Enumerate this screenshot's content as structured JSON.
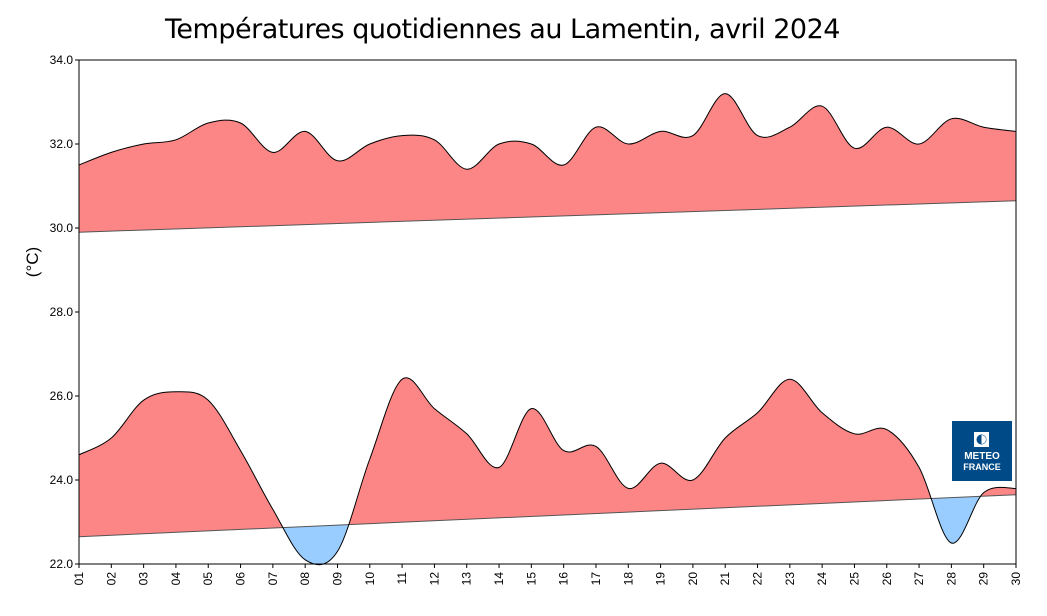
{
  "chart_data": {
    "type": "area",
    "title": "Températures quotidiennes au Lamentin, avril 2024",
    "ylabel": "(°C)",
    "xlabel": "",
    "ylim": [
      22.0,
      34.0
    ],
    "yticks": [
      "22.0",
      "24.0",
      "26.0",
      "28.0",
      "30.0",
      "32.0",
      "34.0"
    ],
    "x": [
      "01",
      "02",
      "03",
      "04",
      "05",
      "06",
      "07",
      "08",
      "09",
      "10",
      "11",
      "12",
      "13",
      "14",
      "15",
      "16",
      "17",
      "18",
      "19",
      "20",
      "21",
      "22",
      "23",
      "24",
      "25",
      "26",
      "27",
      "28",
      "29",
      "30"
    ],
    "series": [
      {
        "values": [
          31.5,
          31.8,
          32.0,
          32.1,
          32.5,
          32.5,
          31.8,
          32.3,
          31.6,
          32.0,
          32.2,
          32.1,
          31.4,
          32.0,
          32.0,
          31.5,
          32.4,
          32.0,
          32.3,
          32.2,
          33.2,
          32.2,
          32.4,
          32.9,
          31.9,
          32.4,
          32.0,
          32.6,
          32.4,
          32.3
        ],
        "normal": [
          29.9,
          30.65
        ]
      },
      {
        "values": [
          24.6,
          25.0,
          25.9,
          26.1,
          25.9,
          24.7,
          23.3,
          22.1,
          22.3,
          24.5,
          26.4,
          25.7,
          25.1,
          24.3,
          25.7,
          24.7,
          24.8,
          23.8,
          24.4,
          24.0,
          25.0,
          25.6,
          26.4,
          25.6,
          25.1,
          25.2,
          24.3,
          22.5,
          23.7,
          23.8
        ],
        "normal": [
          22.65,
          23.65
        ]
      }
    ],
    "colors": {
      "above": "#fc8686",
      "below": "#99ccff",
      "logo_bg": "#004a87"
    },
    "grid": false,
    "legend": "none"
  },
  "logo": {
    "line1": "METEO",
    "line2": "FRANCE"
  }
}
